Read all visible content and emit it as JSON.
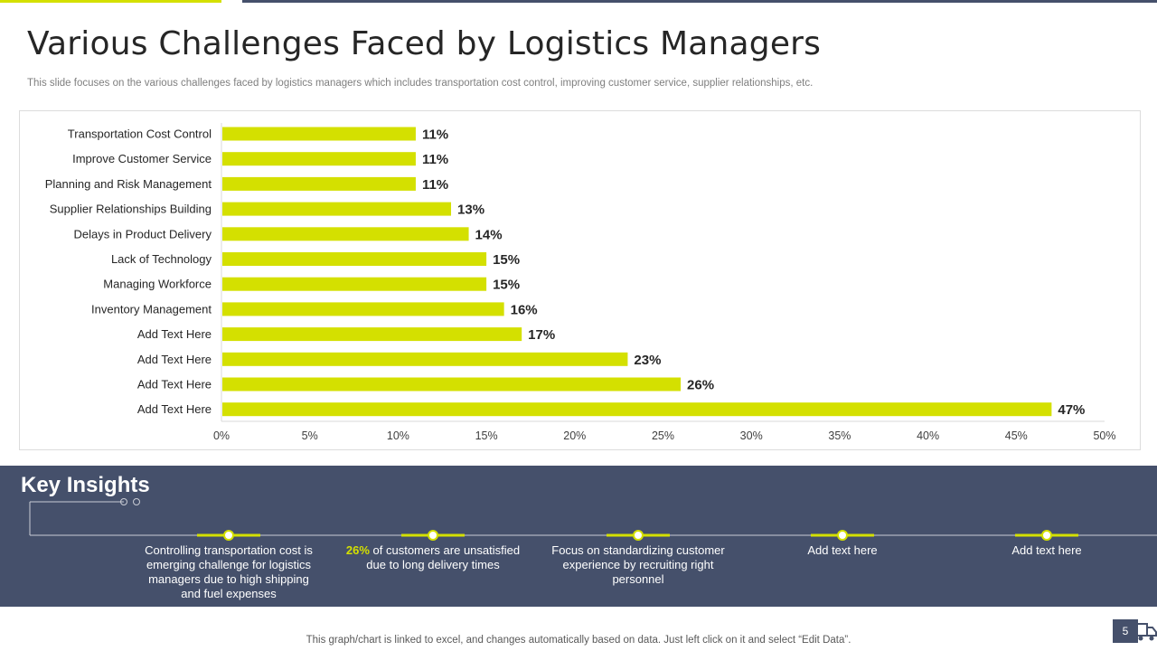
{
  "slide": {
    "title": "Various Challenges Faced by Logistics Managers",
    "subtitle": "This slide focuses on the various challenges faced by logistics managers which includes transportation cost control, improving customer service, supplier relationships, etc.",
    "footnote": "This graph/chart is linked to excel,  and changes automatically based on data. Just left click on it and select “Edit Data”.",
    "page_number": "5"
  },
  "colors": {
    "bar": "#d4e000",
    "dark_panel": "#45506b",
    "accent": "#d4e000"
  },
  "chart_data": {
    "type": "bar",
    "orientation": "horizontal",
    "categories": [
      "Transportation Cost Control",
      "Improve Customer Service",
      "Planning and Risk Management",
      "Supplier Relationships Building",
      "Delays in Product Delivery",
      "Lack of Technology",
      "Managing Workforce",
      "Inventory Management",
      "Add Text Here",
      "Add Text Here",
      "Add Text Here",
      "Add Text Here"
    ],
    "values": [
      11,
      11,
      11,
      13,
      14,
      15,
      15,
      16,
      17,
      23,
      26,
      47
    ],
    "value_labels": [
      "11%",
      "11%",
      "11%",
      "13%",
      "14%",
      "15%",
      "15%",
      "16%",
      "17%",
      "23%",
      "26%",
      "47%"
    ],
    "xlim": [
      0,
      50
    ],
    "x_ticks": [
      "0%",
      "5%",
      "10%",
      "15%",
      "20%",
      "25%",
      "30%",
      "35%",
      "40%",
      "45%",
      "50%"
    ],
    "grid": false,
    "legend": "none"
  },
  "insights": {
    "title": "Key Insights",
    "items": [
      {
        "highlight": "",
        "text": "Controlling transportation cost is emerging challenge for logistics managers due to high shipping and fuel expenses"
      },
      {
        "highlight": "26%",
        "text": " of customers are unsatisfied due to long delivery times"
      },
      {
        "highlight": "",
        "text": "Focus on standardizing customer experience by recruiting right personnel"
      },
      {
        "highlight": "",
        "text": "Add text here"
      },
      {
        "highlight": "",
        "text": "Add text here"
      }
    ]
  }
}
